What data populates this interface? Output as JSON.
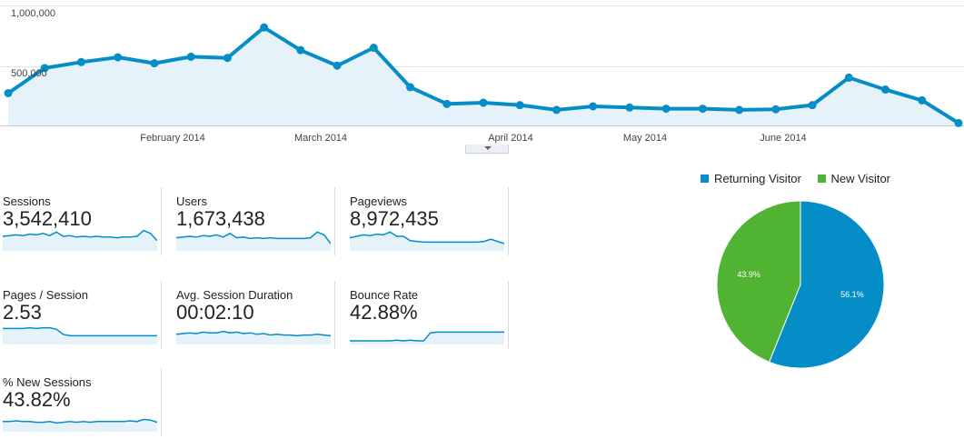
{
  "chart_data": [
    {
      "type": "area",
      "x": [
        "2014-01-06",
        "2014-01-13",
        "2014-01-20",
        "2014-01-27",
        "2014-02-03",
        "2014-02-10",
        "2014-02-17",
        "2014-02-24",
        "2014-03-03",
        "2014-03-10",
        "2014-03-17",
        "2014-03-24",
        "2014-03-31",
        "2014-04-07",
        "2014-04-14",
        "2014-04-21",
        "2014-04-28",
        "2014-05-05",
        "2014-05-12",
        "2014-05-19",
        "2014-05-26",
        "2014-06-02",
        "2014-06-09",
        "2014-06-16",
        "2014-06-23",
        "2014-06-30",
        "2014-07-07"
      ],
      "series": [
        {
          "values": [
            270000,
            480000,
            530000,
            570000,
            520000,
            575000,
            565000,
            820000,
            630000,
            500000,
            650000,
            320000,
            180000,
            190000,
            170000,
            130000,
            160000,
            150000,
            140000,
            140000,
            130000,
            135000,
            170000,
            400000,
            300000,
            210000,
            20000
          ]
        }
      ],
      "x_tick_labels": [
        "February 2014",
        "March 2014",
        "April 2014",
        "May 2014",
        "June 2014"
      ],
      "y_tick_labels": [
        "1,000,000",
        "500,000"
      ],
      "ylim": [
        0,
        1000000
      ],
      "grid": true
    },
    {
      "type": "pie",
      "categories": [
        "Returning Visitor",
        "New Visitor"
      ],
      "values": [
        56.1,
        43.9
      ],
      "slice_labels": [
        "56.1%",
        "43.9%"
      ],
      "legend": "top",
      "colors": [
        "#058dc7",
        "#50b432"
      ]
    }
  ],
  "colors": {
    "line": "#058dc7",
    "area": "#e6f2f9",
    "returning": "#058dc7",
    "new": "#50b432"
  },
  "metrics": [
    {
      "label": "Sessions",
      "value": "3,542,410",
      "spark": [
        20,
        21,
        22,
        21,
        23,
        22,
        24,
        21,
        26,
        20,
        21,
        19,
        20,
        19,
        20,
        19,
        19,
        18,
        19,
        19,
        20,
        28,
        24,
        14
      ]
    },
    {
      "label": "Users",
      "value": "1,673,438",
      "spark": [
        18,
        19,
        20,
        19,
        21,
        20,
        22,
        19,
        24,
        18,
        19,
        17,
        18,
        17,
        18,
        17,
        17,
        17,
        17,
        17,
        18,
        26,
        22,
        10
      ]
    },
    {
      "label": "Pageviews",
      "value": "8,972,435",
      "spark": [
        18,
        20,
        22,
        21,
        23,
        22,
        26,
        20,
        20,
        14,
        13,
        12,
        12,
        12,
        12,
        12,
        12,
        12,
        12,
        12,
        13,
        16,
        13,
        10
      ]
    },
    {
      "label": "Pages / Session",
      "value": "2.53",
      "spark": [
        22,
        22,
        22,
        22,
        23,
        22,
        23,
        23,
        21,
        14,
        12,
        12,
        12,
        12,
        12,
        12,
        12,
        12,
        12,
        12,
        12,
        12,
        12,
        12
      ]
    },
    {
      "label": "Avg. Session Duration",
      "value": "00:02:10",
      "spark": [
        14,
        15,
        16,
        15,
        17,
        16,
        16,
        18,
        16,
        17,
        15,
        16,
        14,
        15,
        13,
        14,
        13,
        13,
        12,
        13,
        13,
        14,
        13,
        12
      ]
    },
    {
      "label": "Bounce Rate",
      "value": "42.88%",
      "spark": [
        5,
        5,
        5,
        5,
        5,
        5,
        5,
        6,
        5,
        6,
        5,
        5,
        16,
        17,
        17,
        17,
        17,
        17,
        17,
        17,
        17,
        17,
        17,
        17
      ]
    },
    {
      "label": "% New Sessions",
      "value": "43.82%",
      "spark": [
        14,
        14,
        15,
        14,
        14,
        13,
        13,
        14,
        12,
        13,
        14,
        13,
        14,
        13,
        14,
        14,
        14,
        14,
        14,
        15,
        14,
        17,
        16,
        13
      ]
    }
  ]
}
